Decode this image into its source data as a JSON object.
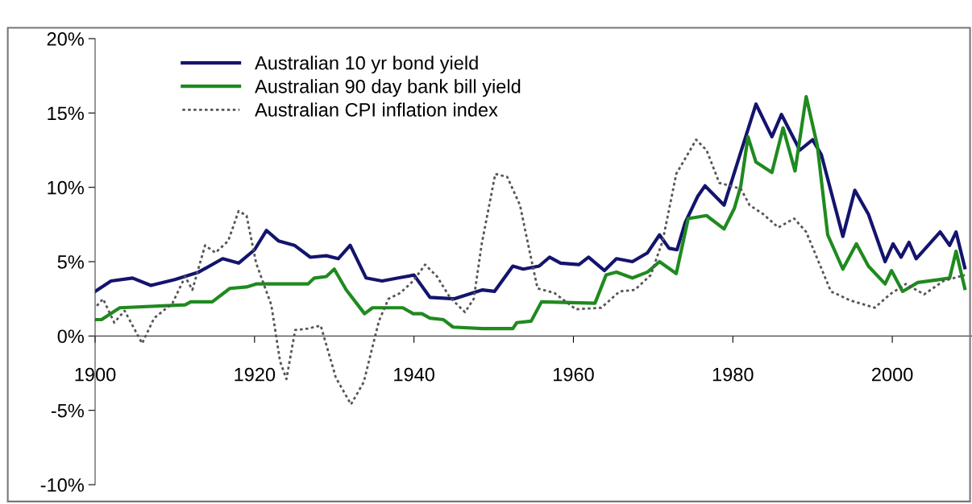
{
  "chart_data": {
    "type": "line",
    "legend": "top left",
    "grid": false,
    "xlim": [
      1900,
      2010
    ],
    "xticks": [
      1900,
      1920,
      1940,
      1960,
      1980,
      2000
    ],
    "ylim": [
      -10,
      20
    ],
    "yticks": [
      {
        "value": -10,
        "label": "-10%"
      },
      {
        "value": -5,
        "label": "-5%"
      },
      {
        "value": 0,
        "label": "0%"
      },
      {
        "value": 5,
        "label": "5%"
      },
      {
        "value": 10,
        "label": "10%"
      },
      {
        "value": 15,
        "label": "15%"
      },
      {
        "value": 20,
        "label": "20%"
      }
    ],
    "series": [
      {
        "name": "Australian 10 yr bond yield",
        "color": "#14146e",
        "line_style": "solid",
        "x": [
          1900,
          1902,
          1904.7,
          1907,
          1910,
          1913,
          1916,
          1918,
          1920,
          1921.5,
          1923,
          1925,
          1927,
          1929,
          1930.5,
          1932,
          1934,
          1936,
          1938,
          1940,
          1942,
          1945,
          1948.6,
          1950.1,
          1952.4,
          1953.7,
          1955.7,
          1957,
          1958.4,
          1960.7,
          1961.9,
          1963.9,
          1965.4,
          1967.4,
          1969.3,
          1970.8,
          1972,
          1973,
          1974,
          1975.6,
          1976.5,
          1978.9,
          1980.6,
          1982.9,
          1984.9,
          1986.1,
          1988.4,
          1990,
          1991.1,
          1993.8,
          1995.3,
          1997,
          1999.1,
          2000.1,
          2001.1,
          2002.1,
          2003,
          2006,
          2007.2,
          2008,
          2009.1
        ],
        "values": [
          3.0,
          3.7,
          3.9,
          3.4,
          3.8,
          4.3,
          5.2,
          4.9,
          5.8,
          7.1,
          6.4,
          6.1,
          5.3,
          5.4,
          5.2,
          6.1,
          3.9,
          3.7,
          3.9,
          4.1,
          2.6,
          2.5,
          3.1,
          3.0,
          4.7,
          4.5,
          4.7,
          5.3,
          4.9,
          4.8,
          5.3,
          4.4,
          5.2,
          5.0,
          5.6,
          6.8,
          5.9,
          5.8,
          7.6,
          9.4,
          10.1,
          8.8,
          11.7,
          15.6,
          13.4,
          14.9,
          12.5,
          13.2,
          12.2,
          6.7,
          9.8,
          8.2,
          5.0,
          6.2,
          5.3,
          6.3,
          5.2,
          7.0,
          6.1,
          7.0,
          4.6
        ]
      },
      {
        "name": "Australian 90 day bank bill yield",
        "color": "#1f8a1f",
        "line_style": "solid",
        "x": [
          1900,
          1900.8,
          1903.1,
          1911.3,
          1912,
          1914.7,
          1916.9,
          1919,
          1920.2,
          1926.7,
          1927.5,
          1929,
          1930,
          1931.5,
          1933.8,
          1934.8,
          1938.6,
          1939.9,
          1941,
          1942,
          1943.7,
          1944.9,
          1948.6,
          1952.4,
          1952.9,
          1954.7,
          1956,
          1962.7,
          1964.1,
          1965.4,
          1967.4,
          1969.3,
          1970.8,
          1972.9,
          1974.4,
          1976.7,
          1978.9,
          1980.2,
          1981,
          1981.9,
          1982.9,
          1984.9,
          1986.3,
          1987.8,
          1989.2,
          1990.6,
          1991.9,
          1993.8,
          1995.5,
          1997,
          1999.1,
          1999.9,
          2001.3,
          2003.2,
          2006,
          2007.2,
          2008,
          2009.1
        ],
        "values": [
          1.1,
          1.1,
          1.9,
          2.1,
          2.3,
          2.3,
          3.2,
          3.3,
          3.5,
          3.5,
          3.9,
          4.0,
          4.5,
          3.1,
          1.5,
          1.9,
          1.9,
          1.5,
          1.5,
          1.2,
          1.1,
          0.6,
          0.5,
          0.5,
          0.9,
          1.0,
          2.3,
          2.2,
          4.1,
          4.3,
          3.9,
          4.3,
          5.0,
          4.2,
          7.9,
          8.1,
          7.2,
          8.6,
          10.1,
          13.4,
          11.7,
          11.0,
          14.0,
          11.1,
          16.1,
          12.8,
          6.8,
          4.5,
          6.2,
          4.7,
          3.5,
          4.4,
          3.0,
          3.6,
          3.8,
          3.9,
          5.7,
          3.2
        ]
      },
      {
        "name": "Australian CPI inflation index",
        "color": "#555555",
        "line_style": "dotted",
        "x": [
          1900,
          1901,
          1902.4,
          1903.7,
          1905.9,
          1907.4,
          1909.7,
          1911.3,
          1912.2,
          1913.8,
          1915.1,
          1916.7,
          1918,
          1919,
          1920.2,
          1922.1,
          1923.2,
          1924,
          1925.1,
          1926.7,
          1928.3,
          1930.2,
          1932.1,
          1933.7,
          1935.6,
          1936.8,
          1938.3,
          1939.9,
          1941.4,
          1942.9,
          1944.5,
          1946.4,
          1947.5,
          1948.5,
          1950.2,
          1951.7,
          1953.3,
          1954.5,
          1955.5,
          1957.6,
          1960.3,
          1963.5,
          1965.8,
          1967.7,
          1969.7,
          1971.2,
          1972.9,
          1975.4,
          1976.7,
          1978.3,
          1981,
          1982.1,
          1983.8,
          1985.7,
          1987.7,
          1989.2,
          1992.3,
          1994.7,
          1997.8,
          1999.7,
          2001.7,
          2004,
          2006.4,
          2009.1
        ],
        "values": [
          1.9,
          2.5,
          0.9,
          1.7,
          -0.5,
          1.2,
          2.2,
          4.0,
          3.1,
          6.1,
          5.6,
          6.4,
          8.4,
          8.1,
          4.9,
          2.1,
          -1.7,
          -2.9,
          0.4,
          0.5,
          0.7,
          -2.8,
          -4.6,
          -3.1,
          1.0,
          2.5,
          2.9,
          3.7,
          4.8,
          4.0,
          2.6,
          1.6,
          2.5,
          6.2,
          10.9,
          10.7,
          8.8,
          5.7,
          3.2,
          2.9,
          1.8,
          1.9,
          3.0,
          3.1,
          4.1,
          6.4,
          10.9,
          13.2,
          12.5,
          10.3,
          9.9,
          8.8,
          8.2,
          7.3,
          7.9,
          7.0,
          3.0,
          2.4,
          1.9,
          2.8,
          3.5,
          2.8,
          3.7,
          4.1
        ]
      }
    ]
  }
}
